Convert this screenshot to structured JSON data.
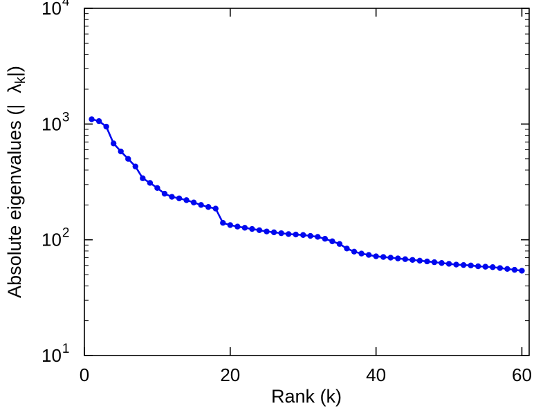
{
  "figure": {
    "background": "#ffffff",
    "axis_color": "#000000"
  },
  "chart_data": {
    "type": "line",
    "title": "",
    "xlabel": "Rank (k)",
    "ylabel_parts": {
      "prefix": "Absolute eigenvalues (|",
      "lambda": "λ",
      "lambda_sub": "k",
      "suffix": "|)"
    },
    "y_scale": "log",
    "xlim": [
      0,
      61
    ],
    "ylim_log_exponents": [
      1,
      4
    ],
    "x_ticks": [
      0,
      20,
      40,
      60
    ],
    "y_tick_base": "10",
    "y_tick_exponents": [
      1,
      2,
      3,
      4
    ],
    "grid": false,
    "legend": "none",
    "line_color": "#0008ee",
    "marker": "filled-circle",
    "x": [
      1,
      2,
      3,
      4,
      5,
      6,
      7,
      8,
      9,
      10,
      11,
      12,
      13,
      14,
      15,
      16,
      17,
      18,
      19,
      20,
      21,
      22,
      23,
      24,
      25,
      26,
      27,
      28,
      29,
      30,
      31,
      32,
      33,
      34,
      35,
      36,
      37,
      38,
      39,
      40,
      41,
      42,
      43,
      44,
      45,
      46,
      47,
      48,
      49,
      50,
      51,
      52,
      53,
      54,
      55,
      56,
      57,
      58,
      59,
      60
    ],
    "y": [
      1100,
      1060,
      950,
      680,
      580,
      500,
      430,
      340,
      310,
      280,
      250,
      235,
      228,
      220,
      210,
      200,
      192,
      186,
      140,
      134,
      130,
      127,
      124,
      121,
      118,
      116,
      114,
      112,
      111,
      110,
      108,
      106,
      102,
      97,
      92,
      84,
      79,
      76,
      74,
      72,
      71,
      70,
      69,
      68,
      67,
      66,
      65,
      64,
      63,
      62,
      61,
      60.5,
      60,
      59,
      58.5,
      58,
      57,
      56,
      55,
      54
    ]
  }
}
